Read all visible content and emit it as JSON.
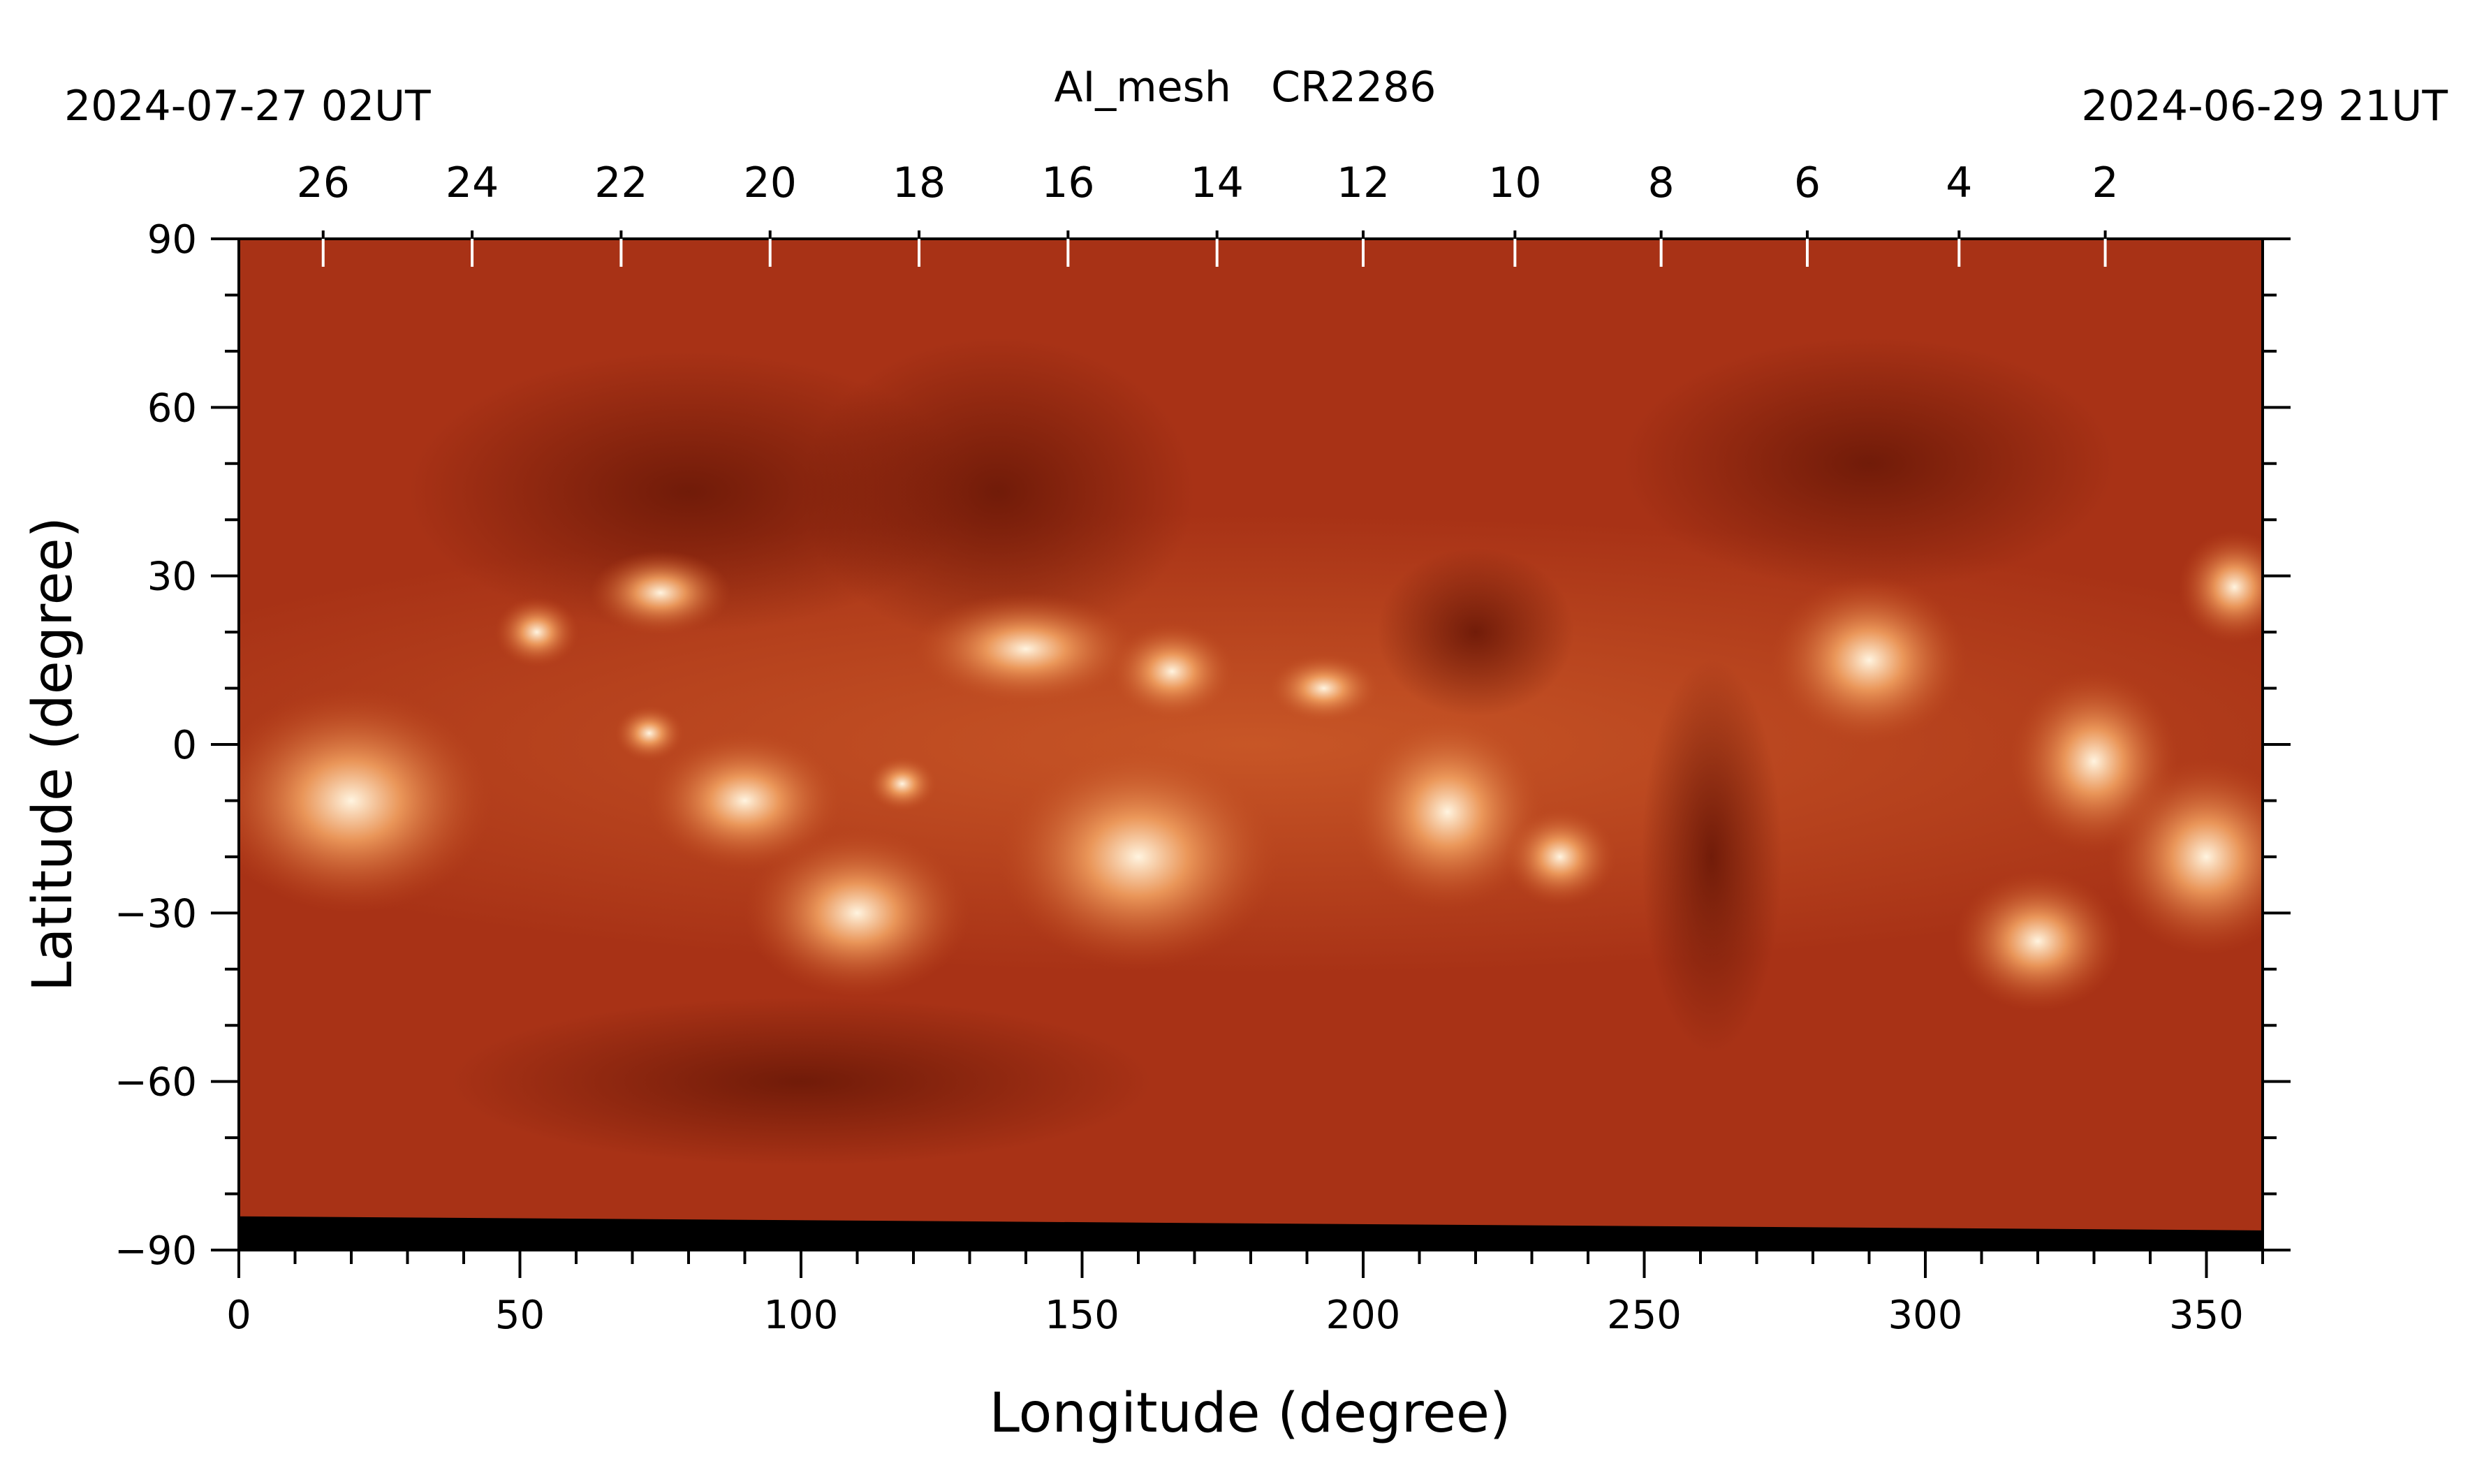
{
  "chart_data": {
    "type": "heatmap",
    "title": "AI_mesh   CR2286",
    "header_left": "2024-07-27 02UT",
    "header_right": "2024-06-29 21UT",
    "xlabel": "Longitude (degree)",
    "ylabel": "Latitude (degree)",
    "xlim": [
      0,
      360
    ],
    "ylim": [
      -90,
      90
    ],
    "x_ticks": [
      "0",
      "50",
      "100",
      "150",
      "200",
      "250",
      "300",
      "350"
    ],
    "x_tick_values": [
      0,
      50,
      100,
      150,
      200,
      250,
      300,
      350
    ],
    "y_ticks": [
      "90",
      "60",
      "30",
      "0",
      "−30",
      "−60",
      "−90"
    ],
    "y_tick_values": [
      90,
      60,
      30,
      0,
      -30,
      -60,
      -90
    ],
    "top_axis_ticks": [
      "26",
      "24",
      "22",
      "20",
      "18",
      "16",
      "14",
      "12",
      "10",
      "8",
      "6",
      "4",
      "2"
    ],
    "top_axis_longitudes": [
      15,
      41.5,
      68,
      94.5,
      121,
      147.5,
      174,
      200,
      227,
      253,
      279,
      306,
      332
    ],
    "grid": false,
    "colors": {
      "background": "#a83216",
      "dark": "#6e1a08",
      "mid": "#c04a1e",
      "bright": "#f0a060",
      "peak": "#fff4e0",
      "no_data": "#000000"
    },
    "no_data_band": {
      "lat_from": -90,
      "lat_to_left": -84,
      "lat_to_right": -86.5
    },
    "features": [
      {
        "kind": "dark",
        "lon": 135,
        "lat": 45,
        "rx": 28,
        "ry": 22
      },
      {
        "kind": "dark",
        "lon": 220,
        "lat": 20,
        "rx": 14,
        "ry": 12
      },
      {
        "kind": "dark",
        "lon": 262,
        "lat": -20,
        "rx": 10,
        "ry": 28
      },
      {
        "kind": "dark",
        "lon": 290,
        "lat": 50,
        "rx": 35,
        "ry": 18
      },
      {
        "kind": "dark",
        "lon": 80,
        "lat": 45,
        "rx": 40,
        "ry": 20
      },
      {
        "kind": "dark",
        "lon": 100,
        "lat": -60,
        "rx": 50,
        "ry": 12
      },
      {
        "kind": "bright",
        "lon": 20,
        "lat": -10,
        "rx": 20,
        "ry": 16
      },
      {
        "kind": "bright",
        "lon": 53,
        "lat": 20,
        "rx": 6,
        "ry": 5
      },
      {
        "kind": "bright",
        "lon": 75,
        "lat": 27,
        "rx": 10,
        "ry": 6
      },
      {
        "kind": "bright",
        "lon": 73,
        "lat": 2,
        "rx": 5,
        "ry": 4
      },
      {
        "kind": "bright",
        "lon": 90,
        "lat": -10,
        "rx": 14,
        "ry": 10
      },
      {
        "kind": "bright",
        "lon": 110,
        "lat": -30,
        "rx": 16,
        "ry": 12
      },
      {
        "kind": "bright",
        "lon": 118,
        "lat": -7,
        "rx": 5,
        "ry": 4
      },
      {
        "kind": "bright",
        "lon": 140,
        "lat": 17,
        "rx": 16,
        "ry": 8
      },
      {
        "kind": "bright",
        "lon": 160,
        "lat": -20,
        "rx": 20,
        "ry": 16
      },
      {
        "kind": "bright",
        "lon": 166,
        "lat": 13,
        "rx": 9,
        "ry": 7
      },
      {
        "kind": "bright",
        "lon": 193,
        "lat": 10,
        "rx": 8,
        "ry": 5
      },
      {
        "kind": "bright",
        "lon": 215,
        "lat": -12,
        "rx": 14,
        "ry": 14
      },
      {
        "kind": "bright",
        "lon": 235,
        "lat": -20,
        "rx": 8,
        "ry": 7
      },
      {
        "kind": "bright",
        "lon": 290,
        "lat": 15,
        "rx": 14,
        "ry": 12
      },
      {
        "kind": "bright",
        "lon": 330,
        "lat": -3,
        "rx": 12,
        "ry": 13
      },
      {
        "kind": "bright",
        "lon": 350,
        "lat": -20,
        "rx": 14,
        "ry": 14
      },
      {
        "kind": "bright",
        "lon": 355,
        "lat": 28,
        "rx": 8,
        "ry": 8
      },
      {
        "kind": "bright",
        "lon": 320,
        "lat": -35,
        "rx": 12,
        "ry": 10
      }
    ]
  }
}
